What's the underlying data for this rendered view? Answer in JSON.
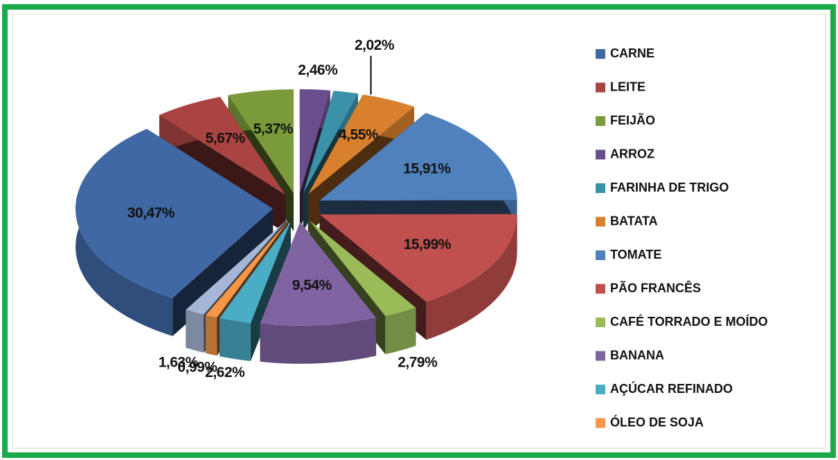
{
  "chart_data": {
    "type": "pie3d",
    "categories": [
      "CARNE",
      "LEITE",
      "FEIJÃO",
      "ARROZ",
      "FARINHA DE TRIGO",
      "BATATA",
      "TOMATE",
      "PÃO FRANCÊS",
      "CAFÉ TORRADO E MOÍDO",
      "BANANA",
      "AÇÚCAR REFINADO",
      "ÓLEO DE SOJA",
      null
    ],
    "values": [
      30.47,
      5.67,
      5.37,
      2.46,
      2.02,
      4.55,
      15.91,
      15.99,
      2.79,
      9.54,
      2.62,
      0.99,
      1.63
    ],
    "value_labels": [
      "30,47%",
      "5,67%",
      "5,37%",
      "2,46%",
      "2,02%",
      "4,55%",
      "15,91%",
      "15,99%",
      "2,79%",
      "9,54%",
      "2,62%",
      "0,99%",
      "1,63%"
    ],
    "colors": [
      "#3f68a5",
      "#a94442",
      "#7a9a3c",
      "#6a4d8c",
      "#3a91a8",
      "#d9802f",
      "#4f81bd",
      "#c0504d",
      "#9bbb59",
      "#8064a2",
      "#4bacc6",
      "#f79646",
      "#a5b6d6"
    ]
  }
}
